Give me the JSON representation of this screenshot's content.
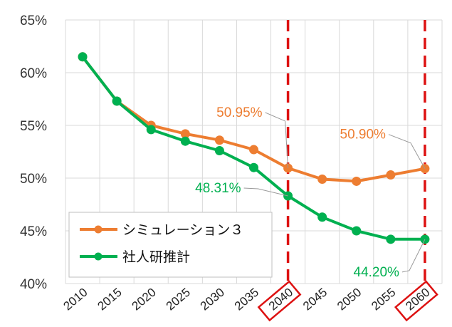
{
  "chart_data": {
    "type": "line",
    "x": [
      "2010",
      "2015",
      "2020",
      "2025",
      "2030",
      "2035",
      "2040",
      "2045",
      "2050",
      "2055",
      "2060"
    ],
    "ylim": [
      40,
      65
    ],
    "yticks": [
      "40%",
      "45%",
      "50%",
      "55%",
      "60%",
      "65%"
    ],
    "grid": true,
    "legend_position": "bottom-left",
    "highlighted_x": [
      "2040",
      "2060"
    ],
    "series": [
      {
        "name": "シミュレーション３",
        "color": "#ED7D31",
        "values": [
          61.5,
          57.3,
          55.0,
          54.2,
          53.6,
          52.7,
          50.95,
          49.9,
          49.7,
          50.3,
          50.9
        ]
      },
      {
        "name": "社人研推計",
        "color": "#00B050",
        "values": [
          61.5,
          57.3,
          54.6,
          53.5,
          52.6,
          51.0,
          48.31,
          46.3,
          45.0,
          44.2,
          44.2
        ]
      }
    ],
    "annotations": [
      {
        "text": "50.95%",
        "series": 0,
        "x": "2040",
        "color": "#ED7D31"
      },
      {
        "text": "50.90%",
        "series": 0,
        "x": "2060",
        "color": "#ED7D31"
      },
      {
        "text": "48.31%",
        "series": 1,
        "x": "2040",
        "color": "#00B050"
      },
      {
        "text": "44.20%",
        "series": 1,
        "x": "2060",
        "color": "#00B050"
      }
    ],
    "highlight_color": "#DD1111"
  }
}
